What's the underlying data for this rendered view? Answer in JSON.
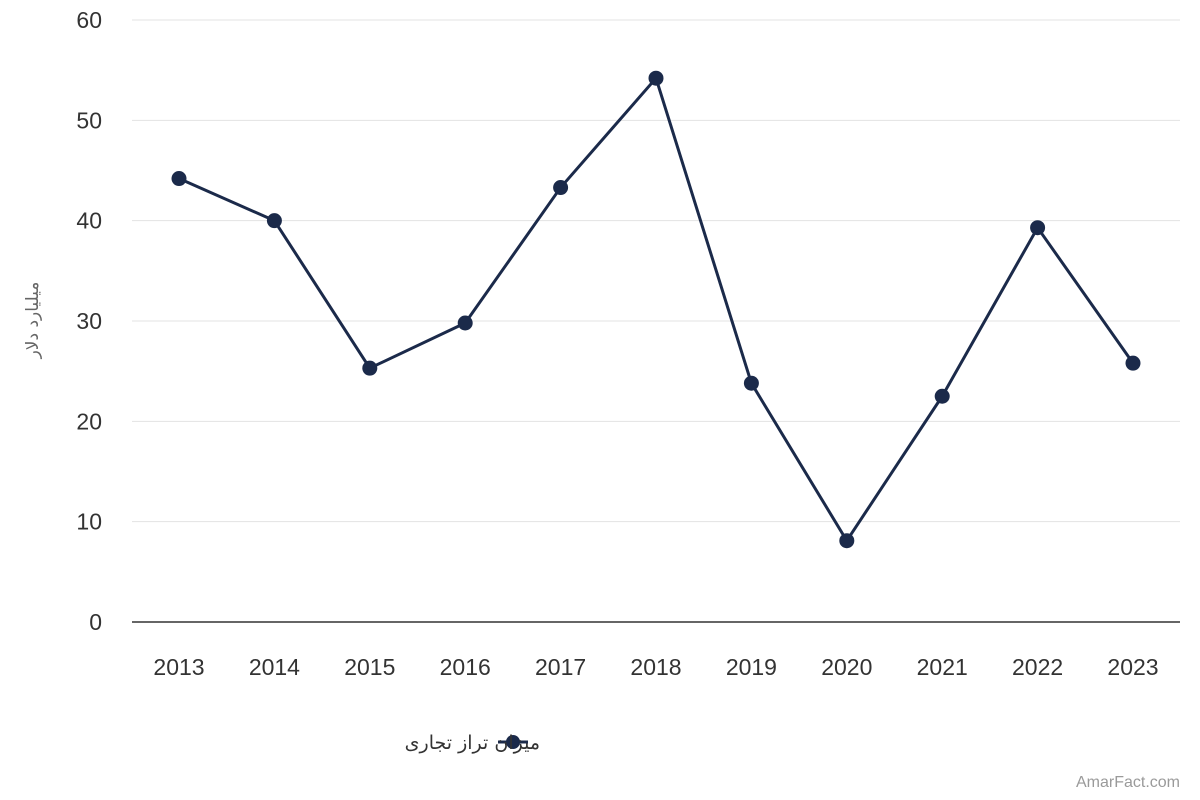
{
  "chart_data": {
    "type": "line",
    "title": "",
    "xlabel": "",
    "ylabel": "میلیارد دلار",
    "x": [
      "2013",
      "2014",
      "2015",
      "2016",
      "2017",
      "2018",
      "2019",
      "2020",
      "2021",
      "2022",
      "2023"
    ],
    "series": [
      {
        "name": "میزان تراز تجاری",
        "values": [
          44.2,
          40.0,
          25.3,
          29.8,
          43.3,
          54.2,
          23.8,
          8.1,
          22.5,
          39.3,
          25.8
        ]
      }
    ],
    "ylim": [
      0,
      60
    ],
    "yticks": [
      0,
      10,
      20,
      30,
      40,
      50,
      60
    ],
    "grid": true,
    "legend_position": "bottom",
    "colors": {
      "line": "#1b2a4a",
      "grid": "#e3e3e3",
      "axis": "#333333"
    }
  },
  "watermark": "AmarFact.com"
}
